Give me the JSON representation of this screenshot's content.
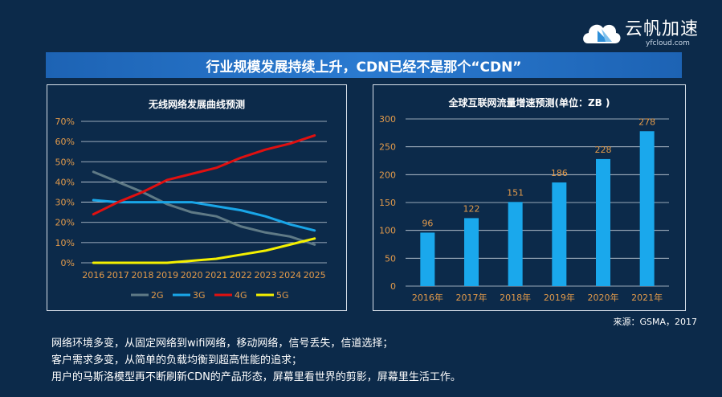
{
  "brand": {
    "name": "云帆加速",
    "url": "yfcloud.com"
  },
  "banner": {
    "title": "行业规模发展持续上升，CDN已经不是那个“CDN”"
  },
  "chart_data": [
    {
      "type": "line",
      "title": "无线网络发展曲线预测",
      "x": [
        "2016",
        "2017",
        "2018",
        "2019",
        "2020",
        "2021",
        "2022",
        "2023",
        "2024",
        "2025"
      ],
      "yticks": [
        "0%",
        "10%",
        "20%",
        "30%",
        "40%",
        "50%",
        "60%",
        "70%"
      ],
      "ylim": [
        0,
        70
      ],
      "grid": true,
      "legend_position": "bottom",
      "series": [
        {
          "name": "2G",
          "color": "#5f7a86",
          "values": [
            45,
            40,
            35,
            29,
            25,
            23,
            18,
            15,
            13,
            9
          ]
        },
        {
          "name": "3G",
          "color": "#19a6e8",
          "values": [
            31,
            30,
            30,
            30,
            30,
            28,
            26,
            23,
            19,
            16
          ]
        },
        {
          "name": "4G",
          "color": "#e01010",
          "values": [
            24,
            30,
            35,
            41,
            44,
            47,
            52,
            56,
            59,
            63
          ]
        },
        {
          "name": "5G",
          "color": "#f4f000",
          "values": [
            0,
            0,
            0,
            0,
            1,
            2,
            4,
            6,
            9,
            12
          ]
        }
      ]
    },
    {
      "type": "bar",
      "title": "全球互联网流量增速预测(单位：ZB )",
      "categories": [
        "2016年",
        "2017年",
        "2018年",
        "2019年",
        "2020年",
        "2021年"
      ],
      "values": [
        96,
        122,
        151,
        186,
        228,
        278
      ],
      "data_labels": [
        "96",
        "122",
        "151",
        "186",
        "228",
        "278"
      ],
      "yticks": [
        "0",
        "50",
        "100",
        "150",
        "200",
        "250",
        "300"
      ],
      "ylim": [
        0,
        300
      ],
      "grid": true,
      "bar_color": "#1aa8ec",
      "label_color": "#e29a4a"
    }
  ],
  "source": "来源：GSMA，2017",
  "notes": [
    "网络环境多变，从固定网络到wifi网络，移动网络，信号丢失，信道选择；",
    "客户需求多变，从简单的负载均衡到超高性能的追求；",
    "用户的马斯洛模型再不断刷新CDN的产品形态，屏幕里看世界的剪影，屏幕里生活工作。"
  ],
  "colors": {
    "background": "#0c2a4a",
    "banner": "#1d63b4",
    "tick_label": "#e29a4a"
  }
}
